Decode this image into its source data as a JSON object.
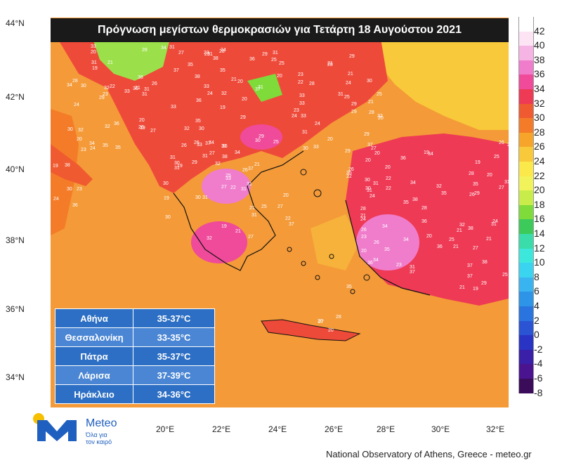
{
  "title": "Πρόγνωση μεγίστων θερμοκρασιών για Τετάρτη 18 Αυγούστου 2021",
  "latitude_labels": [
    "44°N",
    "42°N",
    "40°N",
    "38°N",
    "36°N",
    "34°N"
  ],
  "longitude_labels": [
    "20°E",
    "22°E",
    "24°E",
    "26°E",
    "28°E",
    "30°E",
    "32°E"
  ],
  "colorbar": {
    "labels": [
      "42",
      "40",
      "38",
      "36",
      "34",
      "32",
      "30",
      "28",
      "26",
      "24",
      "22",
      "20",
      "18",
      "16",
      "14",
      "12",
      "10",
      "8",
      "6",
      "4",
      "2",
      "0",
      "-2",
      "-4",
      "-6",
      "-8"
    ],
    "colors": [
      "#ffffff",
      "#fce4f4",
      "#f6b4e4",
      "#ef7dcc",
      "#f04a9a",
      "#ee3a55",
      "#f05a30",
      "#f47c28",
      "#f6a52a",
      "#f8c93a",
      "#fbe84a",
      "#f2f25a",
      "#c8ec4a",
      "#7edb3a",
      "#3ccb5a",
      "#3adcaa",
      "#3ce8dc",
      "#3ad4f0",
      "#3ab4f0",
      "#2e94e8",
      "#2a74e0",
      "#2a54d4",
      "#2a34c4",
      "#3a20a8",
      "#4a1490",
      "#3a0c5a"
    ]
  },
  "cities_table": [
    {
      "city": "Αθήνα",
      "range": "35-37°C"
    },
    {
      "city": "Θεσσαλονίκη",
      "range": "33-35°C"
    },
    {
      "city": "Πάτρα",
      "range": "35-37°C"
    },
    {
      "city": "Λάρισα",
      "range": "37-39°C"
    },
    {
      "city": "Ηράκλειο",
      "range": "34-36°C"
    }
  ],
  "logo": {
    "name": "Meteo",
    "tagline_line1": "Όλα για",
    "tagline_line2": "τον καιρό"
  },
  "footer": "National Observatory of Athens, Greece - meteo.gr",
  "map_values": [
    "21",
    "31",
    "19",
    "20",
    "25",
    "24",
    "26",
    "28",
    "29",
    "30",
    "31",
    "33",
    "34",
    "35",
    "36",
    "37",
    "38",
    "32",
    "27",
    "22",
    "23"
  ]
}
